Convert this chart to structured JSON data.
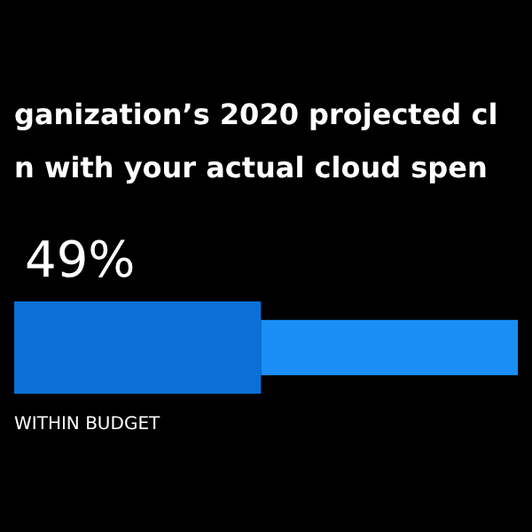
{
  "chart_data": {
    "type": "bar",
    "orientation": "horizontal",
    "stacked": true,
    "title": "ganization’s 2020 projected cl\nn with your actual cloud spen",
    "categories": [
      null
    ],
    "xlim": [
      0,
      100
    ],
    "series": [
      {
        "name": "WITHIN BUDGET",
        "color": "#0a70d8",
        "values": [
          49
        ],
        "value_labels": [
          "49%"
        ]
      },
      {
        "color": "#1b8ef5",
        "values": [
          51
        ],
        "value_labels": [
          null
        ]
      }
    ]
  }
}
